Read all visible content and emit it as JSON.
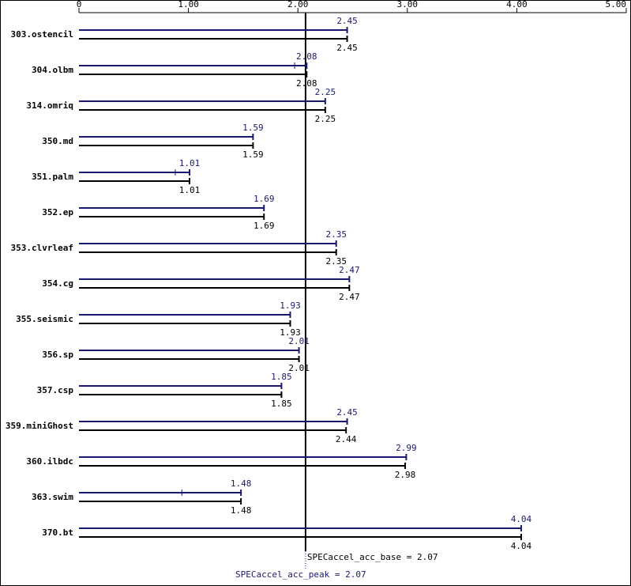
{
  "chart_data": {
    "type": "bar",
    "categories": [
      "303.ostencil",
      "304.olbm",
      "314.omriq",
      "350.md",
      "351.palm",
      "352.ep",
      "353.clvrleaf",
      "354.cg",
      "355.seismic",
      "356.sp",
      "357.csp",
      "359.miniGhost",
      "360.ilbdc",
      "363.swim",
      "370.bt"
    ],
    "series": [
      {
        "name": "peak",
        "color": "#191970",
        "values": [
          2.45,
          2.08,
          2.25,
          1.59,
          1.01,
          1.69,
          2.35,
          2.47,
          1.93,
          2.01,
          1.85,
          2.45,
          2.99,
          1.48,
          4.04
        ],
        "run_markers": [
          null,
          1.97,
          null,
          null,
          0.88,
          null,
          null,
          null,
          null,
          null,
          null,
          null,
          null,
          0.94,
          null
        ]
      },
      {
        "name": "base",
        "color": "#000000",
        "values": [
          2.45,
          2.08,
          2.25,
          1.59,
          1.01,
          1.69,
          2.35,
          2.47,
          1.93,
          2.01,
          1.85,
          2.44,
          2.98,
          1.48,
          4.04
        ]
      }
    ],
    "xlim": [
      0,
      5
    ],
    "xticks": [
      0,
      {
        "value": 1,
        "label": "1.00"
      },
      {
        "value": 2,
        "label": "2.00"
      },
      {
        "value": 3,
        "label": "3.00"
      },
      {
        "value": 4,
        "label": "4.00"
      },
      {
        "value": 5,
        "label": "5.00"
      }
    ],
    "base_summary": {
      "value": 2.07,
      "label": "SPECaccel_acc_base = 2.07"
    },
    "peak_summary": {
      "value": 2.07,
      "label": "SPECaccel_acc_peak = 2.07"
    }
  }
}
